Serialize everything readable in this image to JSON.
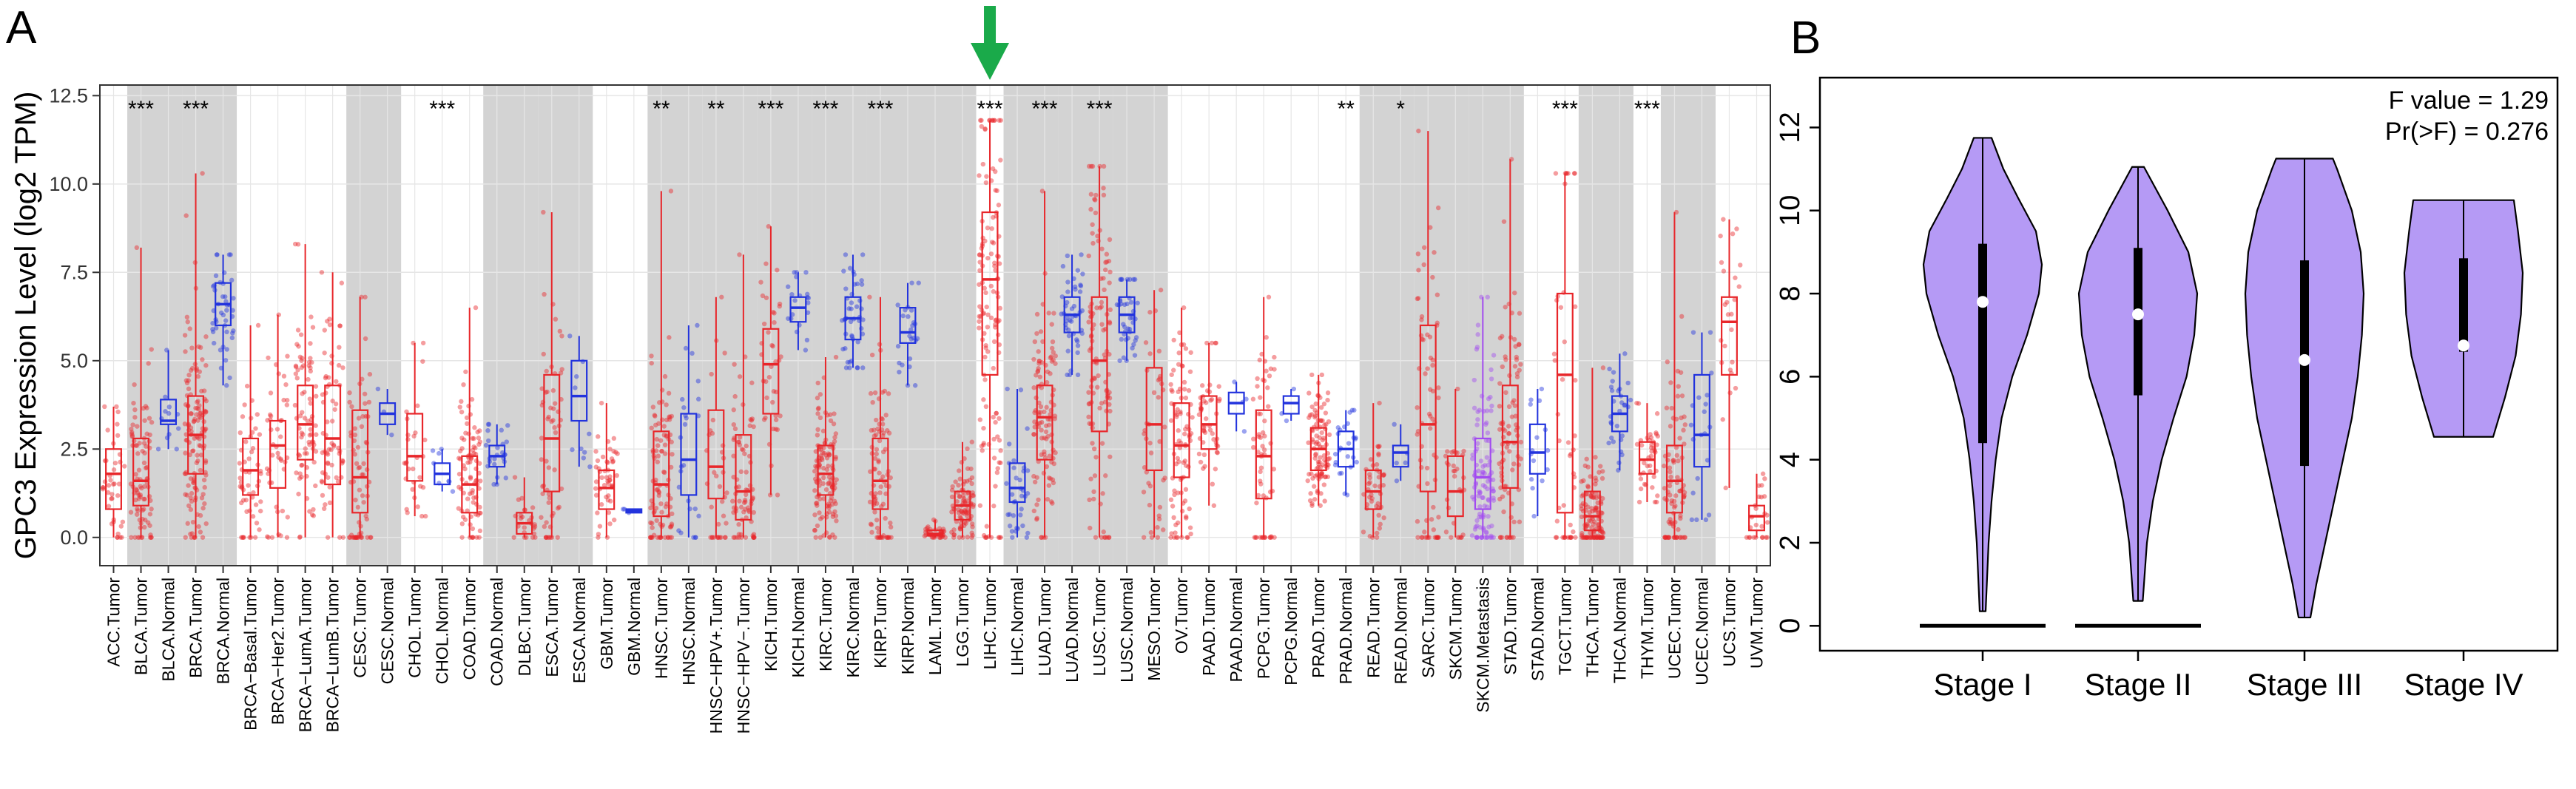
{
  "panel_a_label": "A",
  "panel_b_label": "B",
  "colors": {
    "tumor": "#e8262a",
    "normal": "#2233dd",
    "metastasis": "#a24bf0",
    "shade": "#d3d3d3",
    "grid": "#e6e6e6",
    "violin": "#b59af5",
    "arrow": "#1aaa4a"
  },
  "chart_data": [
    {
      "type": "box",
      "panel": "A",
      "ylabel": "GPC3 Expression Level (log2 TPM)",
      "ylim": [
        -0.8,
        12.8
      ],
      "y_ticks": [
        "0.0",
        "2.5",
        "5.0",
        "7.5",
        "10.0",
        "12.5"
      ],
      "y_tick_values": [
        0,
        2.5,
        5,
        7.5,
        10,
        12.5
      ],
      "highlight_arrow_category": "LIHC.Tumor",
      "shaded_ranges": [
        [
          1,
          2
        ],
        [
          3,
          4
        ],
        [
          9,
          10
        ],
        [
          14,
          15
        ],
        [
          16,
          17
        ],
        [
          20,
          21
        ],
        [
          22,
          23
        ],
        [
          24,
          25
        ],
        [
          26,
          27
        ],
        [
          28,
          29
        ],
        [
          30,
          31
        ],
        [
          33,
          34
        ],
        [
          35,
          36
        ],
        [
          37,
          38
        ],
        [
          46,
          47
        ],
        [
          48,
          49
        ],
        [
          50,
          51
        ],
        [
          54,
          55
        ],
        [
          57,
          58
        ]
      ],
      "significance": [
        {
          "at": 1.5,
          "label": "***"
        },
        {
          "at": 3.5,
          "label": "***"
        },
        {
          "at": 12.5,
          "label": "***"
        },
        {
          "at": 20.5,
          "label": "**"
        },
        {
          "at": 22.5,
          "label": "**"
        },
        {
          "at": 24.5,
          "label": "***"
        },
        {
          "at": 26.5,
          "label": "***"
        },
        {
          "at": 28.5,
          "label": "***"
        },
        {
          "at": 32.5,
          "label": "***"
        },
        {
          "at": 34.5,
          "label": "***"
        },
        {
          "at": 36.5,
          "label": "***"
        },
        {
          "at": 45.5,
          "label": "**"
        },
        {
          "at": 47.5,
          "label": "*"
        },
        {
          "at": 53.5,
          "label": "***"
        },
        {
          "at": 56.5,
          "label": "***"
        }
      ],
      "boxes": [
        {
          "name": "ACC.Tumor",
          "group": "tumor",
          "q1": 0.8,
          "median": 1.8,
          "q3": 2.5,
          "lo": 0.0,
          "hi": 3.7,
          "n": 40
        },
        {
          "name": "BLCA.Tumor",
          "group": "tumor",
          "q1": 0.9,
          "median": 1.6,
          "q3": 2.8,
          "lo": 0.0,
          "hi": 8.2,
          "n": 90
        },
        {
          "name": "BLCA.Normal",
          "group": "normal",
          "q1": 3.2,
          "median": 3.3,
          "q3": 3.9,
          "lo": 2.5,
          "hi": 5.3,
          "n": 12
        },
        {
          "name": "BRCA.Tumor",
          "group": "tumor",
          "q1": 1.8,
          "median": 2.9,
          "q3": 4.0,
          "lo": 0.0,
          "hi": 10.3,
          "n": 160
        },
        {
          "name": "BRCA.Normal",
          "group": "normal",
          "q1": 6.0,
          "median": 6.6,
          "q3": 7.2,
          "lo": 4.3,
          "hi": 8.0,
          "n": 45
        },
        {
          "name": "BRCA−Basal.Tumor",
          "group": "tumor",
          "q1": 1.2,
          "median": 1.9,
          "q3": 2.8,
          "lo": 0.0,
          "hi": 6.0,
          "n": 55
        },
        {
          "name": "BRCA−Her2.Tumor",
          "group": "tumor",
          "q1": 1.4,
          "median": 2.6,
          "q3": 3.3,
          "lo": 0.0,
          "hi": 6.3,
          "n": 45
        },
        {
          "name": "BRCA−LumA.Tumor",
          "group": "tumor",
          "q1": 2.2,
          "median": 3.2,
          "q3": 4.3,
          "lo": 0.0,
          "hi": 8.3,
          "n": 80
        },
        {
          "name": "BRCA−LumB.Tumor",
          "group": "tumor",
          "q1": 1.5,
          "median": 2.8,
          "q3": 4.3,
          "lo": 0.0,
          "hi": 7.5,
          "n": 65
        },
        {
          "name": "CESC.Tumor",
          "group": "tumor",
          "q1": 0.7,
          "median": 1.7,
          "q3": 3.6,
          "lo": 0.0,
          "hi": 6.8,
          "n": 70
        },
        {
          "name": "CESC.Normal",
          "group": "normal",
          "q1": 3.2,
          "median": 3.5,
          "q3": 3.8,
          "lo": 2.9,
          "hi": 4.2,
          "n": 3
        },
        {
          "name": "CHOL.Tumor",
          "group": "tumor",
          "q1": 1.6,
          "median": 2.3,
          "q3": 3.5,
          "lo": 0.6,
          "hi": 5.5,
          "n": 30
        },
        {
          "name": "CHOL.Normal",
          "group": "normal",
          "q1": 1.5,
          "median": 1.8,
          "q3": 2.1,
          "lo": 1.3,
          "hi": 2.5,
          "n": 8
        },
        {
          "name": "COAD.Tumor",
          "group": "tumor",
          "q1": 0.7,
          "median": 1.5,
          "q3": 2.3,
          "lo": 0.0,
          "hi": 6.5,
          "n": 90
        },
        {
          "name": "COAD.Normal",
          "group": "normal",
          "q1": 2.0,
          "median": 2.3,
          "q3": 2.6,
          "lo": 1.5,
          "hi": 3.2,
          "n": 25
        },
        {
          "name": "DLBC.Tumor",
          "group": "tumor",
          "q1": 0.1,
          "median": 0.4,
          "q3": 0.7,
          "lo": 0.0,
          "hi": 1.7,
          "n": 25
        },
        {
          "name": "ESCA.Tumor",
          "group": "tumor",
          "q1": 1.3,
          "median": 2.8,
          "q3": 4.6,
          "lo": 0.0,
          "hi": 9.2,
          "n": 60
        },
        {
          "name": "ESCA.Normal",
          "group": "normal",
          "q1": 3.3,
          "median": 4.0,
          "q3": 5.0,
          "lo": 2.0,
          "hi": 5.7,
          "n": 10
        },
        {
          "name": "GBM.Tumor",
          "group": "tumor",
          "q1": 0.8,
          "median": 1.4,
          "q3": 1.9,
          "lo": 0.0,
          "hi": 3.8,
          "n": 50
        },
        {
          "name": "GBM.Normal",
          "group": "normal",
          "q1": 0.7,
          "median": 0.75,
          "q3": 0.8,
          "lo": 0.7,
          "hi": 0.8,
          "n": 3
        },
        {
          "name": "HNSC.Tumor",
          "group": "tumor",
          "q1": 0.6,
          "median": 1.5,
          "q3": 3.0,
          "lo": 0.0,
          "hi": 9.8,
          "n": 100
        },
        {
          "name": "HNSC.Normal",
          "group": "normal",
          "q1": 1.2,
          "median": 2.2,
          "q3": 3.5,
          "lo": 0.0,
          "hi": 6.0,
          "n": 25
        },
        {
          "name": "HNSC−HPV+.Tumor",
          "group": "tumor",
          "q1": 1.1,
          "median": 2.0,
          "q3": 3.6,
          "lo": 0.0,
          "hi": 6.8,
          "n": 35
        },
        {
          "name": "HNSC−HPV−.Tumor",
          "group": "tumor",
          "q1": 0.5,
          "median": 1.3,
          "q3": 2.9,
          "lo": 0.0,
          "hi": 8.0,
          "n": 80
        },
        {
          "name": "KICH.Tumor",
          "group": "tumor",
          "q1": 3.5,
          "median": 4.9,
          "q3": 5.9,
          "lo": 1.2,
          "hi": 8.8,
          "n": 40
        },
        {
          "name": "KICH.Normal",
          "group": "normal",
          "q1": 6.1,
          "median": 6.5,
          "q3": 6.8,
          "lo": 5.3,
          "hi": 7.5,
          "n": 20
        },
        {
          "name": "KIRC.Tumor",
          "group": "tumor",
          "q1": 1.2,
          "median": 1.8,
          "q3": 2.6,
          "lo": 0.0,
          "hi": 5.1,
          "n": 130
        },
        {
          "name": "KIRC.Normal",
          "group": "normal",
          "q1": 5.6,
          "median": 6.2,
          "q3": 6.8,
          "lo": 4.8,
          "hi": 8.0,
          "n": 45
        },
        {
          "name": "KIRP.Tumor",
          "group": "tumor",
          "q1": 0.8,
          "median": 1.6,
          "q3": 2.8,
          "lo": 0.0,
          "hi": 6.8,
          "n": 90
        },
        {
          "name": "KIRP.Normal",
          "group": "normal",
          "q1": 5.5,
          "median": 5.8,
          "q3": 6.5,
          "lo": 4.3,
          "hi": 7.2,
          "n": 25
        },
        {
          "name": "LAML.Tumor",
          "group": "tumor",
          "q1": 0.05,
          "median": 0.1,
          "q3": 0.2,
          "lo": 0.0,
          "hi": 0.5,
          "n": 35
        },
        {
          "name": "LGG.Tumor",
          "group": "tumor",
          "q1": 0.5,
          "median": 0.9,
          "q3": 1.3,
          "lo": 0.0,
          "hi": 2.7,
          "n": 90
        },
        {
          "name": "LIHC.Tumor",
          "group": "tumor",
          "q1": 4.6,
          "median": 7.3,
          "q3": 9.2,
          "lo": 0.0,
          "hi": 11.8,
          "n": 130
        },
        {
          "name": "LIHC.Normal",
          "group": "normal",
          "q1": 1.0,
          "median": 1.4,
          "q3": 2.1,
          "lo": 0.0,
          "hi": 4.2,
          "n": 35
        },
        {
          "name": "LUAD.Tumor",
          "group": "tumor",
          "q1": 2.2,
          "median": 3.4,
          "q3": 4.3,
          "lo": 0.0,
          "hi": 9.8,
          "n": 110
        },
        {
          "name": "LUAD.Normal",
          "group": "normal",
          "q1": 5.8,
          "median": 6.3,
          "q3": 6.8,
          "lo": 4.6,
          "hi": 8.0,
          "n": 45
        },
        {
          "name": "LUSC.Tumor",
          "group": "tumor",
          "q1": 3.0,
          "median": 5.0,
          "q3": 6.8,
          "lo": 0.0,
          "hi": 10.5,
          "n": 120
        },
        {
          "name": "LUSC.Normal",
          "group": "normal",
          "q1": 5.8,
          "median": 6.3,
          "q3": 6.8,
          "lo": 5.0,
          "hi": 7.3,
          "n": 40
        },
        {
          "name": "MESO.Tumor",
          "group": "tumor",
          "q1": 1.9,
          "median": 3.2,
          "q3": 4.8,
          "lo": 0.0,
          "hi": 7.0,
          "n": 40
        },
        {
          "name": "OV.Tumor",
          "group": "tumor",
          "q1": 1.7,
          "median": 2.6,
          "q3": 3.8,
          "lo": 0.0,
          "hi": 6.5,
          "n": 90
        },
        {
          "name": "PAAD.Tumor",
          "group": "tumor",
          "q1": 2.5,
          "median": 3.2,
          "q3": 4.0,
          "lo": 0.9,
          "hi": 5.5,
          "n": 50
        },
        {
          "name": "PAAD.Normal",
          "group": "normal",
          "q1": 3.5,
          "median": 3.8,
          "q3": 4.1,
          "lo": 3.0,
          "hi": 4.4,
          "n": 4
        },
        {
          "name": "PCPG.Tumor",
          "group": "tumor",
          "q1": 1.1,
          "median": 2.3,
          "q3": 3.6,
          "lo": 0.0,
          "hi": 6.8,
          "n": 60
        },
        {
          "name": "PCPG.Normal",
          "group": "normal",
          "q1": 3.5,
          "median": 3.8,
          "q3": 4.0,
          "lo": 3.3,
          "hi": 4.2,
          "n": 3
        },
        {
          "name": "PRAD.Tumor",
          "group": "tumor",
          "q1": 1.9,
          "median": 2.5,
          "q3": 3.1,
          "lo": 0.9,
          "hi": 4.6,
          "n": 100
        },
        {
          "name": "PRAD.Normal",
          "group": "normal",
          "q1": 2.0,
          "median": 2.5,
          "q3": 3.0,
          "lo": 1.2,
          "hi": 3.6,
          "n": 25
        },
        {
          "name": "READ.Tumor",
          "group": "tumor",
          "q1": 0.8,
          "median": 1.3,
          "q3": 1.9,
          "lo": 0.0,
          "hi": 3.8,
          "n": 45
        },
        {
          "name": "READ.Normal",
          "group": "normal",
          "q1": 2.0,
          "median": 2.4,
          "q3": 2.6,
          "lo": 1.6,
          "hi": 3.2,
          "n": 5
        },
        {
          "name": "SARC.Tumor",
          "group": "tumor",
          "q1": 1.3,
          "median": 3.2,
          "q3": 6.0,
          "lo": 0.0,
          "hi": 11.5,
          "n": 70
        },
        {
          "name": "SKCM.Tumor",
          "group": "tumor",
          "q1": 0.6,
          "median": 1.3,
          "q3": 2.3,
          "lo": 0.0,
          "hi": 4.2,
          "n": 30
        },
        {
          "name": "SKCM.Metastasis",
          "group": "metastasis",
          "q1": 0.8,
          "median": 1.7,
          "q3": 2.8,
          "lo": 0.0,
          "hi": 6.8,
          "n": 110
        },
        {
          "name": "STAD.Tumor",
          "group": "tumor",
          "q1": 1.4,
          "median": 2.7,
          "q3": 4.3,
          "lo": 0.0,
          "hi": 10.7,
          "n": 90
        },
        {
          "name": "STAD.Normal",
          "group": "normal",
          "q1": 1.8,
          "median": 2.4,
          "q3": 3.2,
          "lo": 0.6,
          "hi": 4.2,
          "n": 15
        },
        {
          "name": "TGCT.Tumor",
          "group": "tumor",
          "q1": 0.7,
          "median": 4.6,
          "q3": 6.9,
          "lo": 0.0,
          "hi": 10.3,
          "n": 45
        },
        {
          "name": "THCA.Tumor",
          "group": "tumor",
          "q1": 0.2,
          "median": 0.6,
          "q3": 1.3,
          "lo": 0.0,
          "hi": 4.8,
          "n": 120
        },
        {
          "name": "THCA.Normal",
          "group": "normal",
          "q1": 3.0,
          "median": 3.5,
          "q3": 4.0,
          "lo": 1.9,
          "hi": 5.2,
          "n": 30
        },
        {
          "name": "THYM.Tumor",
          "group": "tumor",
          "q1": 1.8,
          "median": 2.2,
          "q3": 2.7,
          "lo": 1.0,
          "hi": 3.8,
          "n": 40
        },
        {
          "name": "UCEC.Tumor",
          "group": "tumor",
          "q1": 0.7,
          "median": 1.6,
          "q3": 2.6,
          "lo": 0.0,
          "hi": 9.2,
          "n": 90
        },
        {
          "name": "UCEC.Normal",
          "group": "normal",
          "q1": 2.0,
          "median": 2.9,
          "q3": 4.6,
          "lo": 0.5,
          "hi": 5.8,
          "n": 20
        },
        {
          "name": "UCS.Tumor",
          "group": "tumor",
          "q1": 4.6,
          "median": 6.1,
          "q3": 6.8,
          "lo": 1.4,
          "hi": 9.0,
          "n": 25
        },
        {
          "name": "UVM.Tumor",
          "group": "tumor",
          "q1": 0.2,
          "median": 0.6,
          "q3": 0.9,
          "lo": 0.0,
          "hi": 1.8,
          "n": 25
        }
      ]
    },
    {
      "type": "violin",
      "panel": "B",
      "categories": [
        "Stage I",
        "Stage II",
        "Stage III",
        "Stage IV"
      ],
      "ylim": [
        -0.6,
        13.2
      ],
      "y_ticks": [
        "0",
        "2",
        "4",
        "6",
        "8",
        "10",
        "12"
      ],
      "y_tick_values": [
        0,
        2,
        4,
        6,
        8,
        10,
        12
      ],
      "annotation_lines": [
        "F value = 1.29",
        "Pr(>F) = 0.276"
      ],
      "violins": [
        {
          "stage": "Stage I",
          "min": 0.35,
          "max": 11.75,
          "q1": 4.4,
          "median": 7.8,
          "q3": 9.2,
          "zero_bar": true,
          "profile": [
            [
              0.35,
              0.05
            ],
            [
              1,
              0.07
            ],
            [
              2,
              0.1
            ],
            [
              3,
              0.15
            ],
            [
              4,
              0.22
            ],
            [
              5,
              0.32
            ],
            [
              6,
              0.5
            ],
            [
              7,
              0.75
            ],
            [
              8,
              0.95
            ],
            [
              8.7,
              1.0
            ],
            [
              9.5,
              0.9
            ],
            [
              10.3,
              0.6
            ],
            [
              11,
              0.35
            ],
            [
              11.75,
              0.15
            ]
          ]
        },
        {
          "stage": "Stage II",
          "min": 0.6,
          "max": 11.05,
          "q1": 5.55,
          "median": 7.5,
          "q3": 9.1,
          "zero_bar": true,
          "profile": [
            [
              0.6,
              0.08
            ],
            [
              2,
              0.15
            ],
            [
              3,
              0.25
            ],
            [
              4,
              0.4
            ],
            [
              5,
              0.6
            ],
            [
              6,
              0.82
            ],
            [
              7,
              0.95
            ],
            [
              8,
              1.0
            ],
            [
              9,
              0.85
            ],
            [
              10,
              0.5
            ],
            [
              11.05,
              0.1
            ]
          ]
        },
        {
          "stage": "Stage III",
          "min": 0.2,
          "max": 11.25,
          "q1": 3.85,
          "median": 6.4,
          "q3": 8.8,
          "zero_bar": false,
          "profile": [
            [
              0.2,
              0.1
            ],
            [
              1,
              0.2
            ],
            [
              2,
              0.35
            ],
            [
              3,
              0.5
            ],
            [
              4,
              0.65
            ],
            [
              5,
              0.8
            ],
            [
              6,
              0.9
            ],
            [
              7,
              0.97
            ],
            [
              8,
              1.0
            ],
            [
              9,
              0.95
            ],
            [
              10,
              0.8
            ],
            [
              11,
              0.55
            ],
            [
              11.25,
              0.48
            ]
          ]
        },
        {
          "stage": "Stage IV",
          "min": 4.55,
          "max": 10.25,
          "q1": 6.6,
          "median": 6.75,
          "q3": 8.85,
          "zero_bar": false,
          "profile": [
            [
              4.55,
              0.5
            ],
            [
              5.5,
              0.7
            ],
            [
              6.5,
              0.88
            ],
            [
              7.5,
              0.97
            ],
            [
              8.5,
              1.0
            ],
            [
              9.5,
              0.92
            ],
            [
              10.25,
              0.85
            ]
          ]
        }
      ]
    }
  ]
}
